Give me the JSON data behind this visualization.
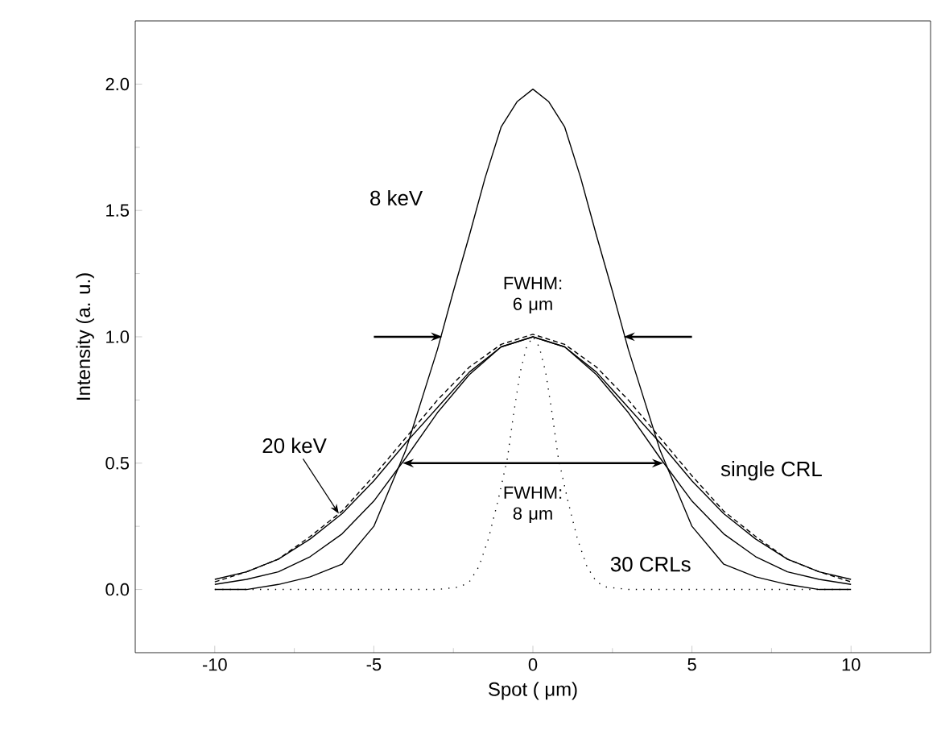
{
  "chart_data": {
    "type": "line",
    "xlabel": "Spot ( μm)",
    "ylabel": "Intensity (a. u.)",
    "xlim": [
      -12.5,
      12.5
    ],
    "ylim": [
      -0.25,
      2.25
    ],
    "xticks": [
      -10,
      -5,
      0,
      5,
      10
    ],
    "yticks": [
      {
        "value": 0,
        "label": "0.0"
      },
      {
        "value": 0.5,
        "label": "0.5"
      },
      {
        "value": 1,
        "label": "1.0"
      },
      {
        "value": 1.5,
        "label": "1.5"
      },
      {
        "value": 2,
        "label": "2.0"
      }
    ],
    "grid": false,
    "legend": false,
    "marker": "none",
    "series": [
      {
        "name": "8 keV",
        "color": "#000000",
        "line_style": "solid",
        "x": [
          -10,
          -9,
          -8,
          -7,
          -6,
          -5,
          -4,
          -3.5,
          -3,
          -2.5,
          -2,
          -1.5,
          -1,
          -0.5,
          0,
          0.5,
          1,
          1.5,
          2,
          2.5,
          3,
          3.5,
          4,
          5,
          6,
          7,
          8,
          9,
          10
        ],
        "values": [
          0.0,
          0.0,
          0.02,
          0.05,
          0.1,
          0.25,
          0.55,
          0.75,
          0.95,
          1.18,
          1.4,
          1.63,
          1.83,
          1.93,
          1.98,
          1.93,
          1.83,
          1.63,
          1.4,
          1.18,
          0.95,
          0.75,
          0.55,
          0.25,
          0.1,
          0.05,
          0.02,
          0.0,
          0.0
        ]
      },
      {
        "color": "#000000",
        "line_style": "solid",
        "x": [
          -10,
          -9,
          -8,
          -7,
          -6,
          -5,
          -4,
          -3,
          -2,
          -1,
          0,
          1,
          2,
          3,
          4,
          5,
          6,
          7,
          8,
          9,
          10
        ],
        "values": [
          0.02,
          0.04,
          0.07,
          0.13,
          0.22,
          0.35,
          0.52,
          0.7,
          0.85,
          0.96,
          1.0,
          0.96,
          0.85,
          0.7,
          0.52,
          0.35,
          0.22,
          0.13,
          0.07,
          0.04,
          0.02
        ]
      },
      {
        "name": "20 keV",
        "color": "#000000",
        "line_style": "solid",
        "x": [
          -10,
          -9,
          -8,
          -7,
          -6,
          -5,
          -4,
          -3,
          -2,
          -1,
          0,
          1,
          2,
          3,
          4,
          5,
          6,
          7,
          8,
          9,
          10
        ],
        "values": [
          0.04,
          0.07,
          0.12,
          0.2,
          0.3,
          0.43,
          0.58,
          0.72,
          0.86,
          0.96,
          1.0,
          0.96,
          0.86,
          0.72,
          0.58,
          0.43,
          0.3,
          0.2,
          0.12,
          0.07,
          0.04
        ]
      },
      {
        "name": "single CRL",
        "color": "#000000",
        "line_style": "dashed",
        "x": [
          -10,
          -9,
          -8,
          -7,
          -6,
          -5,
          -4,
          -3,
          -2,
          -1,
          0,
          1,
          2,
          3,
          4,
          5,
          6,
          7,
          8,
          9,
          10
        ],
        "values": [
          0.03,
          0.07,
          0.12,
          0.21,
          0.31,
          0.45,
          0.6,
          0.75,
          0.88,
          0.97,
          1.01,
          0.97,
          0.88,
          0.75,
          0.6,
          0.45,
          0.31,
          0.21,
          0.12,
          0.07,
          0.03
        ]
      },
      {
        "name": "30 CRLs",
        "color": "#000000",
        "line_style": "dotted",
        "x": [
          -10,
          -3,
          -2.3,
          -2,
          -1.7,
          -1.4,
          -1.1,
          -0.8,
          -0.6,
          -0.4,
          -0.2,
          0,
          0.2,
          0.4,
          0.6,
          0.8,
          1.1,
          1.4,
          1.7,
          2,
          2.3,
          3,
          10
        ],
        "values": [
          0,
          0,
          0.01,
          0.03,
          0.09,
          0.2,
          0.35,
          0.52,
          0.7,
          0.86,
          0.96,
          1.0,
          0.96,
          0.86,
          0.7,
          0.52,
          0.35,
          0.2,
          0.09,
          0.03,
          0.01,
          0,
          0
        ]
      }
    ],
    "annotations": [
      "FWHM: 6 μm",
      "FWHM: 8 μm"
    ]
  }
}
